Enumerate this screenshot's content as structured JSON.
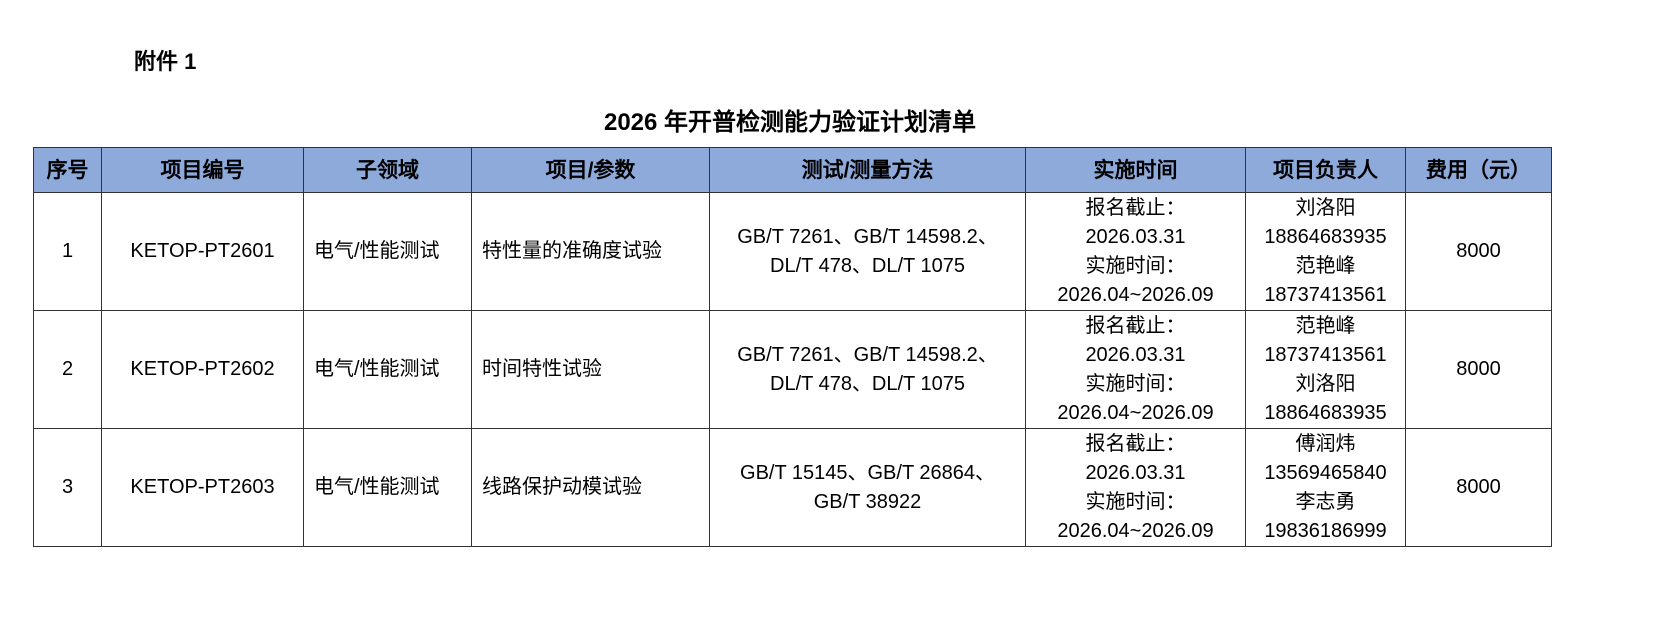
{
  "attachment_label": "附件 1",
  "title": "2026 年开普检测能力验证计划清单",
  "header_color": "#8eaadb",
  "columns": [
    "序号",
    "项目编号",
    "子领域",
    "项目/参数",
    "测试/测量方法",
    "实施时间",
    "项目负责人",
    "费用（元）"
  ],
  "rows": [
    {
      "no": "1",
      "code": "KETOP-PT2601",
      "subfield": "电气/性能测试",
      "item": "特性量的准确度试验",
      "methods": [
        "GB/T 7261、GB/T 14598.2、",
        "DL/T 478、DL/T 1075"
      ],
      "time": [
        "报名截止：",
        "2026.03.31",
        "实施时间：",
        "2026.04~2026.09"
      ],
      "persons": [
        "刘洛阳",
        "18864683935",
        "范艳峰",
        "18737413561"
      ],
      "fee": "8000"
    },
    {
      "no": "2",
      "code": "KETOP-PT2602",
      "subfield": "电气/性能测试",
      "item": "时间特性试验",
      "methods": [
        "GB/T 7261、GB/T 14598.2、",
        "DL/T 478、DL/T 1075"
      ],
      "time": [
        "报名截止：",
        "2026.03.31",
        "实施时间：",
        "2026.04~2026.09"
      ],
      "persons": [
        "范艳峰",
        "18737413561",
        "刘洛阳",
        "18864683935"
      ],
      "fee": "8000"
    },
    {
      "no": "3",
      "code": "KETOP-PT2603",
      "subfield": "电气/性能测试",
      "item": "线路保护动模试验",
      "methods": [
        "GB/T 15145、GB/T 26864、",
        "GB/T 38922"
      ],
      "time": [
        "报名截止：",
        "2026.03.31",
        "实施时间：",
        "2026.04~2026.09"
      ],
      "persons": [
        "傅润炜",
        "13569465840",
        "李志勇",
        "19836186999"
      ],
      "fee": "8000"
    }
  ]
}
